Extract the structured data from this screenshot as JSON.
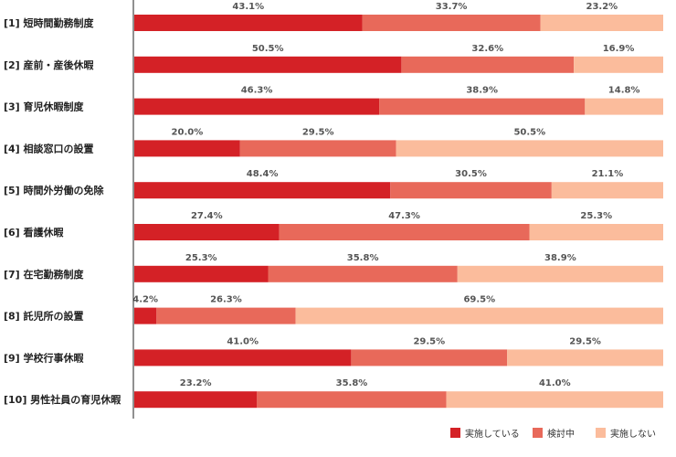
{
  "chart_data": {
    "type": "bar",
    "orientation": "horizontal",
    "stacked": true,
    "categories": [
      "[1] 短時間勤務制度",
      "[2] 産前・産後休暇",
      "[3] 育児休暇制度",
      "[4] 相談窓口の設置",
      "[5] 時間外労働の免除",
      "[6] 看護休暇",
      "[7] 在宅勤務制度",
      "[8] 託児所の設置",
      "[9] 学校行事休暇",
      "[10] 男性社員の育児休暇"
    ],
    "series": [
      {
        "name": "実施している",
        "color": "#d42126",
        "values": [
          43.1,
          50.5,
          46.3,
          20.0,
          48.4,
          27.4,
          25.3,
          4.2,
          41.0,
          23.2
        ],
        "labels": [
          "43.1%",
          "50.5%",
          "46.3%",
          "20.0%",
          "48.4%",
          "27.4%",
          "25.3%",
          "4.2%",
          "41.0%",
          "23.2%"
        ]
      },
      {
        "name": "検討中",
        "color": "#e8695a",
        "values": [
          33.7,
          32.6,
          38.9,
          29.5,
          30.5,
          47.3,
          35.8,
          26.3,
          29.5,
          35.8
        ],
        "labels": [
          "33.7%",
          "32.6%",
          "38.9%",
          "29.5%",
          "30.5%",
          "47.3%",
          "35.8%",
          "26.3%",
          "29.5%",
          "35.8%"
        ]
      },
      {
        "name": "実施しない",
        "color": "#fbbc9c",
        "values": [
          23.2,
          16.9,
          14.8,
          50.5,
          21.1,
          25.3,
          38.9,
          69.5,
          29.5,
          41.0
        ],
        "labels": [
          "23.2%",
          "16.9%",
          "14.8%",
          "50.5%",
          "21.1%",
          "25.3%",
          "38.9%",
          "69.5%",
          "29.5%",
          "41.0%"
        ]
      }
    ],
    "xlim": [
      0,
      100
    ],
    "legend_position": "bottom-right"
  }
}
